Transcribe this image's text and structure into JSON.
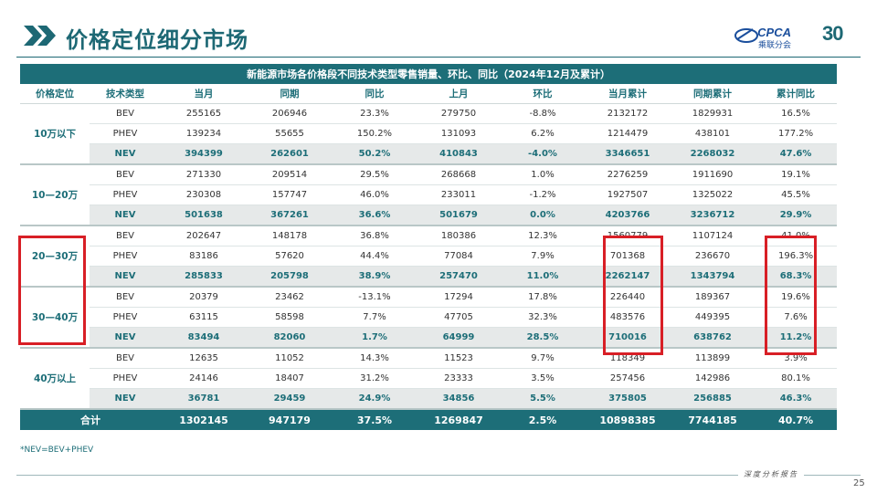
{
  "title": "价格定位细分市场",
  "brand": {
    "name": "CPCA",
    "sub": "乘联分会",
    "anniversary": "30"
  },
  "table": {
    "caption": "新能源市场各价格段不同技术类型零售销量、环比、同比（2024年12月及累计）",
    "headers": [
      "价格定位",
      "技术类型",
      "当月",
      "同期",
      "同比",
      "上月",
      "环比",
      "当月累计",
      "同期累计",
      "累计同比"
    ],
    "groups": [
      {
        "label": "10万以下",
        "rows": [
          [
            "BEV",
            "255165",
            "206946",
            "23.3%",
            "279750",
            "-8.8%",
            "2132172",
            "1829931",
            "16.5%"
          ],
          [
            "PHEV",
            "139234",
            "55655",
            "150.2%",
            "131093",
            "6.2%",
            "1214479",
            "438101",
            "177.2%"
          ],
          [
            "NEV",
            "394399",
            "262601",
            "50.2%",
            "410843",
            "-4.0%",
            "3346651",
            "2268032",
            "47.6%"
          ]
        ]
      },
      {
        "label": "10—20万",
        "rows": [
          [
            "BEV",
            "271330",
            "209514",
            "29.5%",
            "268668",
            "1.0%",
            "2276259",
            "1911690",
            "19.1%"
          ],
          [
            "PHEV",
            "230308",
            "157747",
            "46.0%",
            "233011",
            "-1.2%",
            "1927507",
            "1325022",
            "45.5%"
          ],
          [
            "NEV",
            "501638",
            "367261",
            "36.6%",
            "501679",
            "0.0%",
            "4203766",
            "3236712",
            "29.9%"
          ]
        ]
      },
      {
        "label": "20—30万",
        "rows": [
          [
            "BEV",
            "202647",
            "148178",
            "36.8%",
            "180386",
            "12.3%",
            "1560779",
            "1107124",
            "41.0%"
          ],
          [
            "PHEV",
            "83186",
            "57620",
            "44.4%",
            "77084",
            "7.9%",
            "701368",
            "236670",
            "196.3%"
          ],
          [
            "NEV",
            "285833",
            "205798",
            "38.9%",
            "257470",
            "11.0%",
            "2262147",
            "1343794",
            "68.3%"
          ]
        ]
      },
      {
        "label": "30—40万",
        "rows": [
          [
            "BEV",
            "20379",
            "23462",
            "-13.1%",
            "17294",
            "17.8%",
            "226440",
            "189367",
            "19.6%"
          ],
          [
            "PHEV",
            "63115",
            "58598",
            "7.7%",
            "47705",
            "32.3%",
            "483576",
            "449395",
            "7.6%"
          ],
          [
            "NEV",
            "83494",
            "82060",
            "1.7%",
            "64999",
            "28.5%",
            "710016",
            "638762",
            "11.2%"
          ]
        ]
      },
      {
        "label": "40万以上",
        "rows": [
          [
            "BEV",
            "12635",
            "11052",
            "14.3%",
            "11523",
            "9.7%",
            "118349",
            "113899",
            "3.9%"
          ],
          [
            "PHEV",
            "24146",
            "18407",
            "31.2%",
            "23333",
            "3.5%",
            "257456",
            "142986",
            "80.1%"
          ],
          [
            "NEV",
            "36781",
            "29459",
            "24.9%",
            "34856",
            "5.5%",
            "375805",
            "256885",
            "46.3%"
          ]
        ]
      }
    ],
    "total": [
      "合计",
      "1302145",
      "947179",
      "37.5%",
      "1269847",
      "2.5%",
      "10898385",
      "7744185",
      "40.7%"
    ]
  },
  "footnote": "*NEV=BEV+PHEV",
  "footer_tag": "深度分析报告",
  "page_number": "25",
  "colors": {
    "primary": "#1d6e78",
    "highlight": "#d81f26",
    "nev_row": "#e6e9e9"
  }
}
